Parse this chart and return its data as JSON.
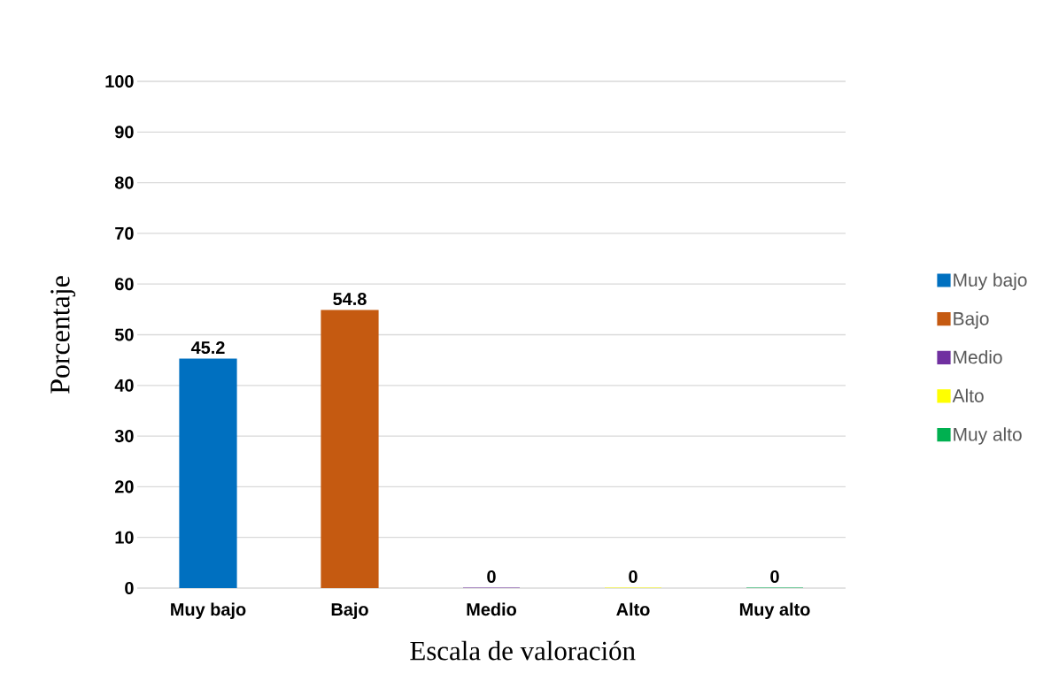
{
  "chart_data": {
    "type": "bar",
    "xlabel": "Escala de valoración",
    "ylabel": "Porcentaje",
    "categories": [
      "Muy bajo",
      "Bajo",
      "Medio",
      "Alto",
      "Muy alto"
    ],
    "series": [
      {
        "name": "Muy bajo",
        "color": "#0070c0",
        "values": [
          45.2,
          null,
          null,
          null,
          null
        ]
      },
      {
        "name": "Bajo",
        "color": "#c55a11",
        "values": [
          null,
          54.8,
          null,
          null,
          null
        ]
      },
      {
        "name": "Medio",
        "color": "#7030a0",
        "values": [
          null,
          null,
          0,
          null,
          null
        ]
      },
      {
        "name": "Alto",
        "color": "#ffff00",
        "values": [
          null,
          null,
          null,
          0,
          null
        ]
      },
      {
        "name": "Muy alto",
        "color": "#00b050",
        "values": [
          null,
          null,
          null,
          null,
          0
        ]
      }
    ],
    "ylim": [
      0,
      100
    ],
    "yticks": [
      0,
      10,
      20,
      30,
      40,
      50,
      60,
      70,
      80,
      90,
      100
    ],
    "grid": "y",
    "legend": "right",
    "data_labels": true
  }
}
